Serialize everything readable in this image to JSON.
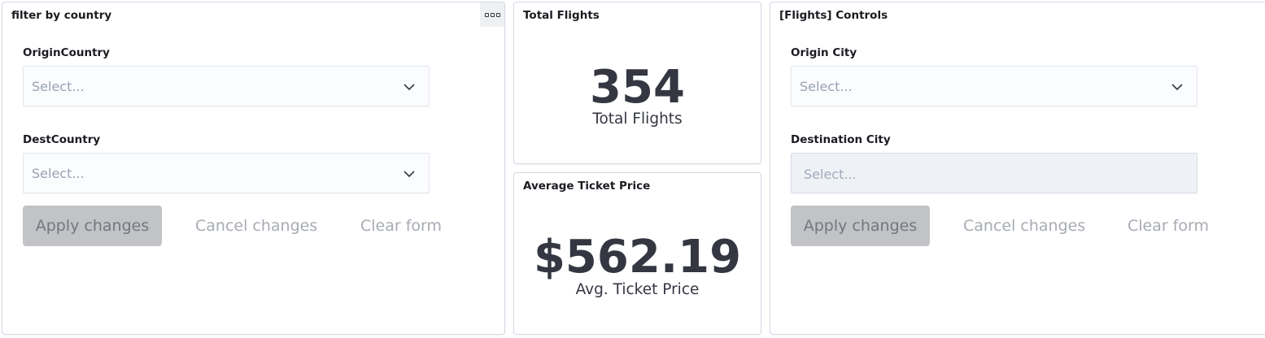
{
  "panels": {
    "country_filter": {
      "title": "filter by country",
      "options_icon": "boxes-horizontal-icon",
      "fields": [
        {
          "label": "OriginCountry",
          "placeholder": "Select..."
        },
        {
          "label": "DestCountry",
          "placeholder": "Select..."
        }
      ],
      "actions": {
        "apply": "Apply changes",
        "cancel": "Cancel changes",
        "clear": "Clear form"
      }
    },
    "total_flights": {
      "title": "Total Flights",
      "value": "354",
      "label": "Total Flights"
    },
    "avg_ticket_price": {
      "title": "Average Ticket Price",
      "value": "$562.19",
      "label": "Avg. Ticket Price"
    },
    "flight_controls": {
      "title": "[Flights] Controls",
      "fields": [
        {
          "label": "Origin City",
          "placeholder": "Select..."
        },
        {
          "label": "Destination City",
          "placeholder": "Select...",
          "disabled": true
        }
      ],
      "actions": {
        "apply": "Apply changes",
        "cancel": "Cancel changes",
        "clear": "Clear form"
      }
    }
  },
  "colors": {
    "panel_border": "#d3dae6",
    "metric_text": "#343741",
    "placeholder_text": "#98a2b3",
    "disabled_button_bg": "#c2c3c6",
    "disabled_button_text": "#73777f",
    "link_text": "#a7abb3"
  }
}
